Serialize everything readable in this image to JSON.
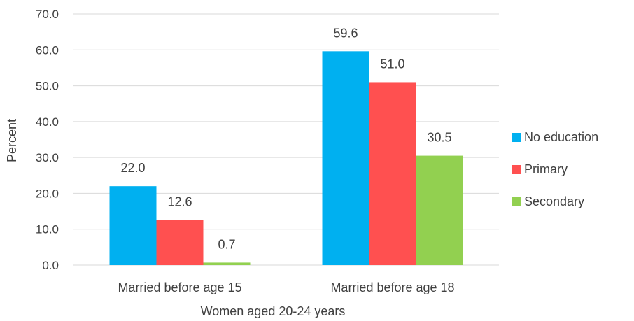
{
  "chart_data": {
    "type": "bar",
    "categories": [
      "Married before age 15",
      "Married before age 18"
    ],
    "series": [
      {
        "name": "No education",
        "values": [
          22.0,
          59.6
        ],
        "labels": [
          "22.0",
          "59.6"
        ],
        "color": "#00b0f0"
      },
      {
        "name": "Primary",
        "values": [
          12.6,
          51.0
        ],
        "labels": [
          "12.6",
          "51.0"
        ],
        "color": "#ff5050"
      },
      {
        "name": "Secondary",
        "values": [
          0.7,
          30.5
        ],
        "labels": [
          "0.7",
          "30.5"
        ],
        "color": "#92d050"
      }
    ],
    "y_ticks": [
      "0.0",
      "10.0",
      "20.0",
      "30.0",
      "40.0",
      "50.0",
      "60.0",
      "70.0"
    ],
    "ylim": [
      0,
      70
    ],
    "xlabel": "Women aged 20-24 years",
    "ylabel": "Percent",
    "grid": true,
    "legend_position": "right"
  }
}
